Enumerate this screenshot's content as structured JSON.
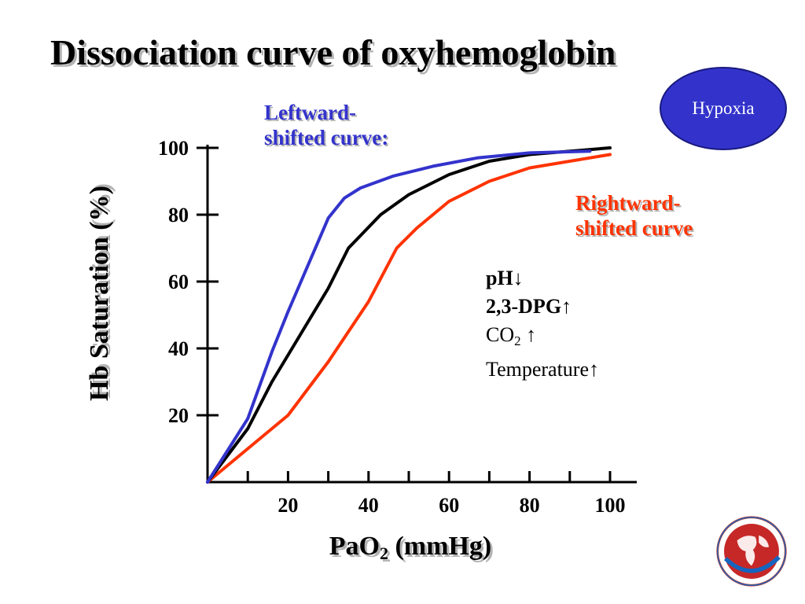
{
  "slide": {
    "title": "Dissociation curve of oxyhemoglobin",
    "badge": "Hypoxia",
    "annotation_left": [
      "Leftward-",
      "shifted curve:"
    ],
    "annotation_right": [
      "Rightward-",
      "shifted curve"
    ],
    "factors": {
      "ph": "pH↓",
      "dpg": "2,3-DPG↑",
      "co2_main": "CO",
      "co2_sub": "2",
      "co2_arrow": " ↑",
      "temp": "Temperature↑"
    },
    "logo_icon": "university-globe-seal-icon"
  },
  "chart_data": {
    "type": "line",
    "title": "",
    "ylabel": "Hb Saturation (%)",
    "xlabel_main": "PaO",
    "xlabel_sub": "2",
    "xlabel_unit": " (mmHg)",
    "xlim": [
      0,
      100
    ],
    "ylim": [
      0,
      100
    ],
    "x_ticks": [
      20,
      40,
      60,
      80,
      100
    ],
    "x_minor_ticks": [
      10,
      30,
      50,
      70,
      90
    ],
    "y_ticks": [
      20,
      40,
      60,
      80,
      100
    ],
    "colors": {
      "left": "#3333cc",
      "normal": "#000000",
      "right": "#ff3300"
    },
    "series": [
      {
        "key": "left",
        "x": [
          0,
          10,
          16,
          20,
          30,
          34,
          38,
          46,
          56,
          67,
          80,
          95
        ],
        "y": [
          0,
          19,
          39,
          51,
          79,
          85,
          88,
          91.5,
          94.5,
          97,
          98.5,
          99
        ]
      },
      {
        "key": "normal",
        "x": [
          0,
          10,
          16,
          20,
          30,
          35,
          43,
          50,
          60,
          70,
          80,
          100
        ],
        "y": [
          0,
          16,
          30,
          38,
          58,
          70,
          80,
          86,
          92,
          96,
          98,
          100
        ]
      },
      {
        "key": "right",
        "x": [
          0,
          10,
          20,
          30,
          40,
          47,
          52,
          60,
          70,
          80,
          100
        ],
        "y": [
          0,
          10,
          20,
          36,
          54,
          70,
          76,
          84,
          90,
          94,
          98
        ]
      }
    ]
  }
}
